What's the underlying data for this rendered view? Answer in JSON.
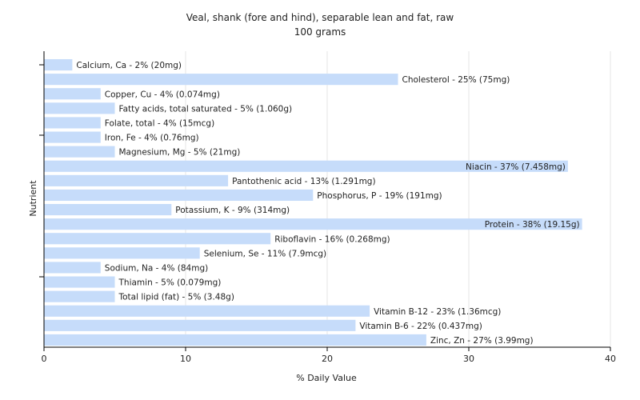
{
  "chart_data": {
    "type": "bar",
    "orientation": "horizontal",
    "title": "Veal, shank (fore and hind), separable lean and fat, raw",
    "subtitle": "100 grams",
    "xlabel": "% Daily Value",
    "ylabel": "Nutrient",
    "xlim": [
      0,
      40
    ],
    "xticks": [
      0,
      10,
      20,
      30,
      40
    ],
    "grid": true,
    "bar_color": "#c6dcfa",
    "categories": [
      "Calcium, Ca",
      "Cholesterol",
      "Copper, Cu",
      "Fatty acids, total saturated",
      "Folate, total",
      "Iron, Fe",
      "Magnesium, Mg",
      "Niacin",
      "Pantothenic acid",
      "Phosphorus, P",
      "Potassium, K",
      "Protein",
      "Riboflavin",
      "Selenium, Se",
      "Sodium, Na",
      "Thiamin",
      "Total lipid (fat)",
      "Vitamin B-12",
      "Vitamin B-6",
      "Zinc, Zn"
    ],
    "values": [
      2,
      25,
      4,
      5,
      4,
      4,
      5,
      37,
      13,
      19,
      9,
      38,
      16,
      11,
      4,
      5,
      5,
      23,
      22,
      27
    ],
    "labels": [
      "Calcium, Ca - 2% (20mg)",
      "Cholesterol - 25% (75mg)",
      "Copper, Cu - 4% (0.074mg)",
      "Fatty acids, total saturated - 5% (1.060g)",
      "Folate, total - 4% (15mcg)",
      "Iron, Fe - 4% (0.76mg)",
      "Magnesium, Mg - 5% (21mg)",
      "Niacin - 37% (7.458mg)",
      "Pantothenic acid - 13% (1.291mg)",
      "Phosphorus, P - 19% (191mg)",
      "Potassium, K - 9% (314mg)",
      "Protein - 38% (19.15g)",
      "Riboflavin - 16% (0.268mg)",
      "Selenium, Se - 11% (7.9mcg)",
      "Sodium, Na - 4% (84mg)",
      "Thiamin - 5% (0.079mg)",
      "Total lipid (fat) - 5% (3.48g)",
      "Vitamin B-12 - 23% (1.36mcg)",
      "Vitamin B-6 - 22% (0.437mg)",
      "Zinc, Zn - 27% (3.99mg)"
    ]
  }
}
